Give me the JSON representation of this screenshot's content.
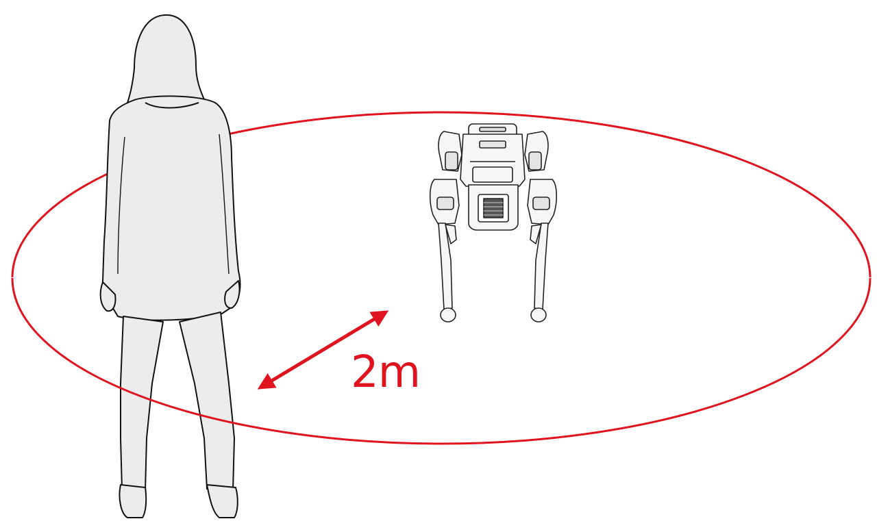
{
  "diagram": {
    "distance_label": "2m",
    "colors": {
      "accent": "#e0141e",
      "outline": "#111111",
      "figure_fill": "#ececec",
      "robot_fill": "#f6f6f6"
    },
    "icons": [
      "person-silhouette-icon",
      "quadruped-robot-icon",
      "double-arrow-icon"
    ]
  }
}
